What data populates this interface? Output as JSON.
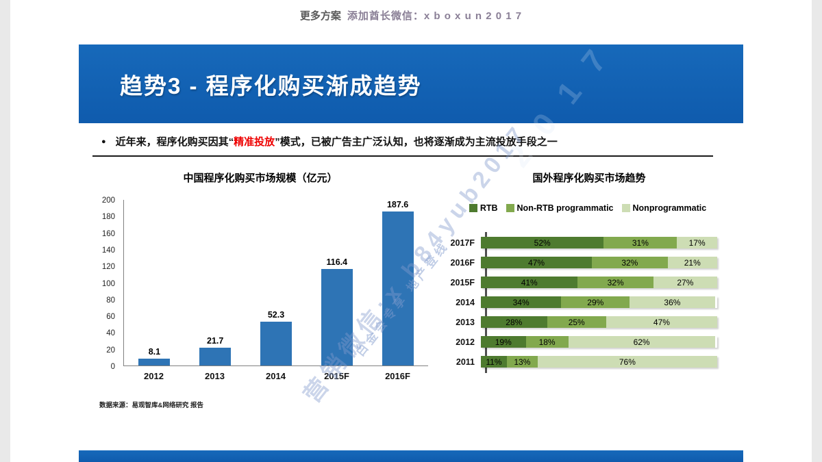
{
  "page": {
    "top_note_left": "更多方案",
    "top_note_right": "添加酋长微信：x b o x u n 2 0 1 7"
  },
  "banner": {
    "title": "趋势3 - 程序化购买渐成趋势",
    "color": "#1263B1"
  },
  "bullet": {
    "marker": "●",
    "pre": "近年来，程序化购买因其“",
    "highlight": "精准投放",
    "post": "”模式，已被广告主广泛认知，也将逐渐成为主流投放手段之一",
    "highlight_color": "#EE0000"
  },
  "watermark": {
    "banner_text": "2 0 1 7",
    "line_small": "白金会专享 地产登线",
    "line_big": "营销微信:x b84yub2017"
  },
  "source": "数据来源：易观智库&网络研究 报告",
  "chart_data": [
    {
      "type": "bar",
      "title": "中国程序化购买市场规模（亿元）",
      "categories": [
        "2012",
        "2013",
        "2014",
        "2015F",
        "2016F"
      ],
      "values": [
        8.1,
        21.7,
        52.3,
        116.4,
        187.6
      ],
      "xlabel": "",
      "ylabel": "",
      "ylim": [
        0,
        200
      ],
      "ytick_step": 20,
      "grid": false,
      "bar_color": "#2E74B5"
    },
    {
      "type": "bar-horizontal-stacked",
      "title": "国外程序化购买市场趋势",
      "categories": [
        "2017F",
        "2016F",
        "2015F",
        "2014",
        "2013",
        "2012",
        "2011"
      ],
      "series": [
        {
          "name": "RTB",
          "color": "#4E7B2F",
          "values": [
            52,
            47,
            41,
            34,
            28,
            19,
            11
          ]
        },
        {
          "name": "Non-RTB programmatic",
          "color": "#82A94E",
          "values": [
            31,
            32,
            32,
            29,
            25,
            18,
            13
          ]
        },
        {
          "name": "Nonprogrammatic",
          "color": "#CDDDB4",
          "values": [
            17,
            21,
            27,
            36,
            47,
            62,
            76
          ]
        }
      ],
      "value_suffix": "%",
      "xlim": [
        0,
        100
      ],
      "legend_position": "top",
      "grid": false
    }
  ]
}
